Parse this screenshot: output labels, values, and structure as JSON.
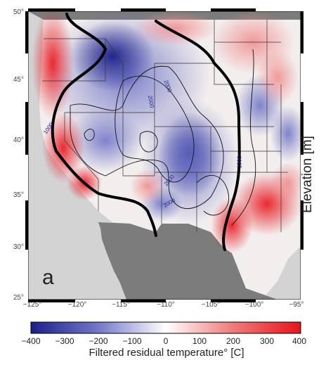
{
  "panel_label": "a",
  "side_title": "Elevation [m]",
  "colorbar": {
    "title": "Filtered residual temperature° [C]",
    "ticks": [
      "−400",
      "−300",
      "−200",
      "−100",
      "0",
      "100",
      "200",
      "300",
      "400"
    ],
    "colors": [
      "#1b1f8a",
      "#ffffff",
      "#e8141b"
    ]
  },
  "lat_ticks": [
    "25°",
    "30°",
    "35°",
    "40°",
    "45°",
    "50°"
  ],
  "lon_ticks": [
    "−125°",
    "−120°",
    "−115°",
    "−110°",
    "−105°",
    "−100°",
    "−95°"
  ],
  "contour_labels": [
    "1000",
    "2000",
    "2000",
    "2000",
    "2000",
    "1000"
  ],
  "colors": {
    "land_gray": "#7c7c7c",
    "ocean_gray": "#d3d3d3",
    "contour": "#111111"
  }
}
